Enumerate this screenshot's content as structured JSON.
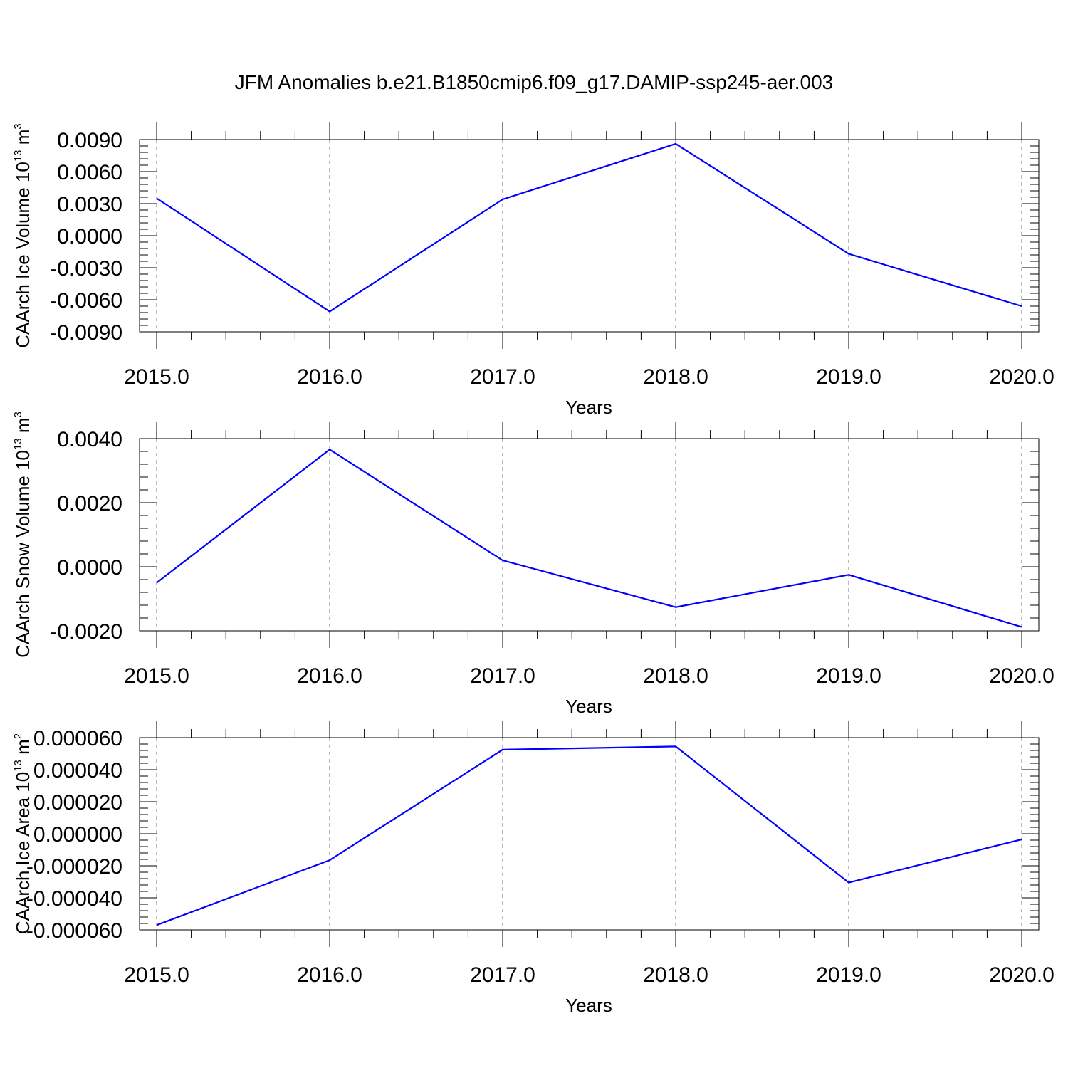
{
  "title": "JFM Anomalies b.e21.B1850cmip6.f09_g17.DAMIP-ssp245-aer.003",
  "colors": {
    "series": "#0000ff",
    "grid": "#777777"
  },
  "chart_data": [
    {
      "type": "line",
      "ylabel": "CAArch Ice Volume 10",
      "ylabel_sup": "13",
      "ylabel_unit": " m",
      "ylabel_unit_sup": "3",
      "xlabel": "Years",
      "xlim": [
        2015.0,
        2020.0
      ],
      "ylim": [
        -0.009,
        0.009
      ],
      "x_ticks": [
        "2015.0",
        "2016.0",
        "2017.0",
        "2018.0",
        "2019.0",
        "2020.0"
      ],
      "y_ticks": [
        "0.0090",
        "0.0060",
        "0.0030",
        "0.0000",
        "-0.0030",
        "-0.0060",
        "-0.0090"
      ],
      "y_tick_values": [
        0.009,
        0.006,
        0.003,
        0.0,
        -0.003,
        -0.006,
        -0.009
      ],
      "grid": "vertical-dashed",
      "x": [
        2015,
        2016,
        2017,
        2018,
        2019,
        2020
      ],
      "values": [
        0.0035,
        -0.0071,
        0.0034,
        0.0086,
        -0.0017,
        -0.0066
      ]
    },
    {
      "type": "line",
      "ylabel": "CAArch Snow Volume 10",
      "ylabel_sup": "13",
      "ylabel_unit": " m",
      "ylabel_unit_sup": "3",
      "xlabel": "Years",
      "xlim": [
        2015.0,
        2020.0
      ],
      "ylim": [
        -0.002,
        0.004
      ],
      "x_ticks": [
        "2015.0",
        "2016.0",
        "2017.0",
        "2018.0",
        "2019.0",
        "2020.0"
      ],
      "y_ticks": [
        "0.0040",
        "0.0020",
        "0.0000",
        "-0.0020"
      ],
      "y_tick_values": [
        0.004,
        0.002,
        0.0,
        -0.002
      ],
      "grid": "vertical-dashed",
      "x": [
        2015,
        2016,
        2017,
        2018,
        2019,
        2020
      ],
      "values": [
        -0.0005,
        0.00366,
        0.0002,
        -0.00126,
        -0.00025,
        -0.00188
      ]
    },
    {
      "type": "line",
      "ylabel": "CAArch Ice Area 10",
      "ylabel_sup": "13",
      "ylabel_unit": " m",
      "ylabel_unit_sup": "2",
      "xlabel": "Years",
      "xlim": [
        2015.0,
        2020.0
      ],
      "ylim": [
        -6e-05,
        6e-05
      ],
      "x_ticks": [
        "2015.0",
        "2016.0",
        "2017.0",
        "2018.0",
        "2019.0",
        "2020.0"
      ],
      "y_ticks": [
        "0.000060",
        "0.000040",
        "0.000020",
        "0.000000",
        "-0.000020",
        "-0.000040",
        "-0.000060"
      ],
      "y_tick_values": [
        6e-05,
        4e-05,
        2e-05,
        0.0,
        -2e-05,
        -4e-05,
        -6e-05
      ],
      "grid": "vertical-dashed",
      "x": [
        2015,
        2016,
        2017,
        2018,
        2019,
        2020
      ],
      "values": [
        -5.7e-05,
        -1.65e-05,
        5.25e-05,
        5.45e-05,
        -3.05e-05,
        -3.5e-06
      ]
    }
  ]
}
